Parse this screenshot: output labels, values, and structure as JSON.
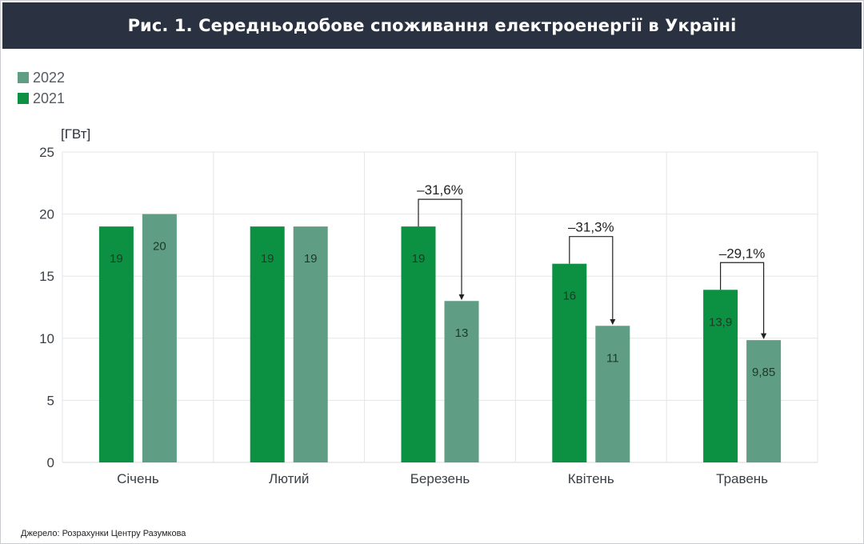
{
  "title": "Рис. 1. Середньодобове споживання електроенергії в Україні",
  "source": "Джерело: Розрахунки Центру Разумкова",
  "colors": {
    "s2021": "#0b9141",
    "s2022": "#5f9e84",
    "header": "#2a3140"
  },
  "chart_data": {
    "type": "bar",
    "ylabel": "[ГВт]",
    "ylim": [
      0,
      25
    ],
    "yticks": [
      "0",
      "5",
      "10",
      "15",
      "20",
      "25"
    ],
    "grid": true,
    "legend_position": "top-left",
    "categories": [
      "Січень",
      "Лютий",
      "Березень",
      "Квітень",
      "Травень"
    ],
    "series": [
      {
        "name": "2022",
        "values": [
          20,
          19,
          13,
          11,
          9.85
        ],
        "labels": [
          "20",
          "19",
          "13",
          "11",
          "9,85"
        ]
      },
      {
        "name": "2021",
        "values": [
          19,
          19,
          19,
          16,
          13.9
        ],
        "labels": [
          "19",
          "19",
          "19",
          "16",
          "13,9"
        ]
      }
    ],
    "annotations": [
      {
        "category": "Березень",
        "text": "–31,6%"
      },
      {
        "category": "Квітень",
        "text": "–31,3%"
      },
      {
        "category": "Травень",
        "text": "–29,1%"
      }
    ]
  }
}
